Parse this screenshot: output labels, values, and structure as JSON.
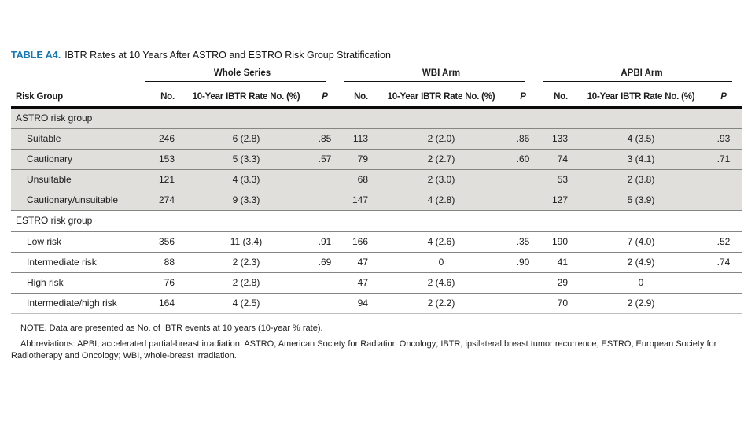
{
  "title": {
    "prefix": "TABLE A4.",
    "text": "IBTR Rates at 10 Years After ASTRO and ESTRO Risk Group Stratification"
  },
  "header": {
    "risk_group_label": "Risk Group",
    "groups": [
      {
        "label": "Whole Series"
      },
      {
        "label": "WBI Arm"
      },
      {
        "label": "APBI Arm"
      }
    ],
    "sub": {
      "no": "No.",
      "rate": "10-Year IBTR Rate No. (%)",
      "p": "P"
    }
  },
  "colors": {
    "accent_blue": "#1779b8",
    "shaded_row": "#e0dfdc"
  },
  "table": {
    "sections": [
      {
        "name": "ASTRO risk group",
        "rows": [
          {
            "label": "Suitable",
            "cells": [
              "246",
              "6 (2.8)",
              ".85",
              "113",
              "2 (2.0)",
              ".86",
              "133",
              "4 (3.5)",
              ".93"
            ]
          },
          {
            "label": "Cautionary",
            "cells": [
              "153",
              "5 (3.3)",
              ".57",
              "79",
              "2 (2.7)",
              ".60",
              "74",
              "3 (4.1)",
              ".71"
            ]
          },
          {
            "label": "Unsuitable",
            "cells": [
              "121",
              "4 (3.3)",
              "",
              "68",
              "2 (3.0)",
              "",
              "53",
              "2 (3.8)",
              ""
            ]
          },
          {
            "label": "Cautionary/unsuitable",
            "cells": [
              "274",
              "9 (3.3)",
              "",
              "147",
              "4 (2.8)",
              "",
              "127",
              "5 (3.9)",
              ""
            ]
          }
        ]
      },
      {
        "name": "ESTRO risk group",
        "rows": [
          {
            "label": "Low risk",
            "cells": [
              "356",
              "11 (3.4)",
              ".91",
              "166",
              "4 (2.6)",
              ".35",
              "190",
              "7 (4.0)",
              ".52"
            ]
          },
          {
            "label": "Intermediate risk",
            "cells": [
              "88",
              "2 (2.3)",
              ".69",
              "47",
              "0",
              ".90",
              "41",
              "2 (4.9)",
              ".74"
            ]
          },
          {
            "label": "High risk",
            "cells": [
              "76",
              "2 (2.8)",
              "",
              "47",
              "2 (4.6)",
              "",
              "29",
              "0",
              ""
            ]
          },
          {
            "label": "Intermediate/high risk",
            "cells": [
              "164",
              "4 (2.5)",
              "",
              "94",
              "2 (2.2)",
              "",
              "70",
              "2 (2.9)",
              ""
            ]
          }
        ]
      }
    ]
  },
  "notes": {
    "note": "NOTE. Data are presented as No. of IBTR events at 10 years (10-year % rate).",
    "abbreviations": "Abbreviations: APBI, accelerated partial-breast irradiation; ASTRO, American Society for Radiation Oncology; IBTR, ipsilateral breast tumor recurrence; ESTRO, European Society for Radiotherapy and Oncology; WBI, whole-breast irradiation."
  }
}
